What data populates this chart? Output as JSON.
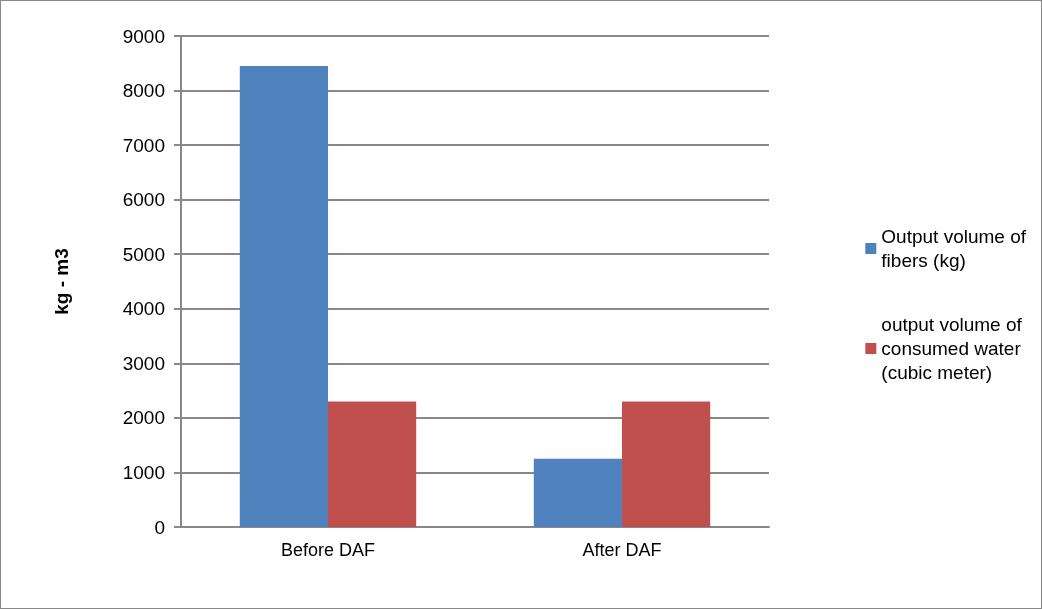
{
  "chart_data": {
    "type": "bar",
    "ylabel": "kg - m3",
    "categories": [
      "Before DAF",
      "After DAF"
    ],
    "series": [
      {
        "name": "Output volume of fibers (kg)",
        "color": "#4f81bd",
        "values": [
          8450,
          1250
        ]
      },
      {
        "name": "output volume of consumed water (cubic meter)",
        "color": "#c0504d",
        "values": [
          2300,
          2300
        ]
      }
    ],
    "ylim": [
      0,
      9000
    ],
    "yticks": [
      0,
      1000,
      2000,
      3000,
      4000,
      5000,
      6000,
      7000,
      8000,
      9000
    ],
    "grid": "y",
    "legend": "right"
  }
}
